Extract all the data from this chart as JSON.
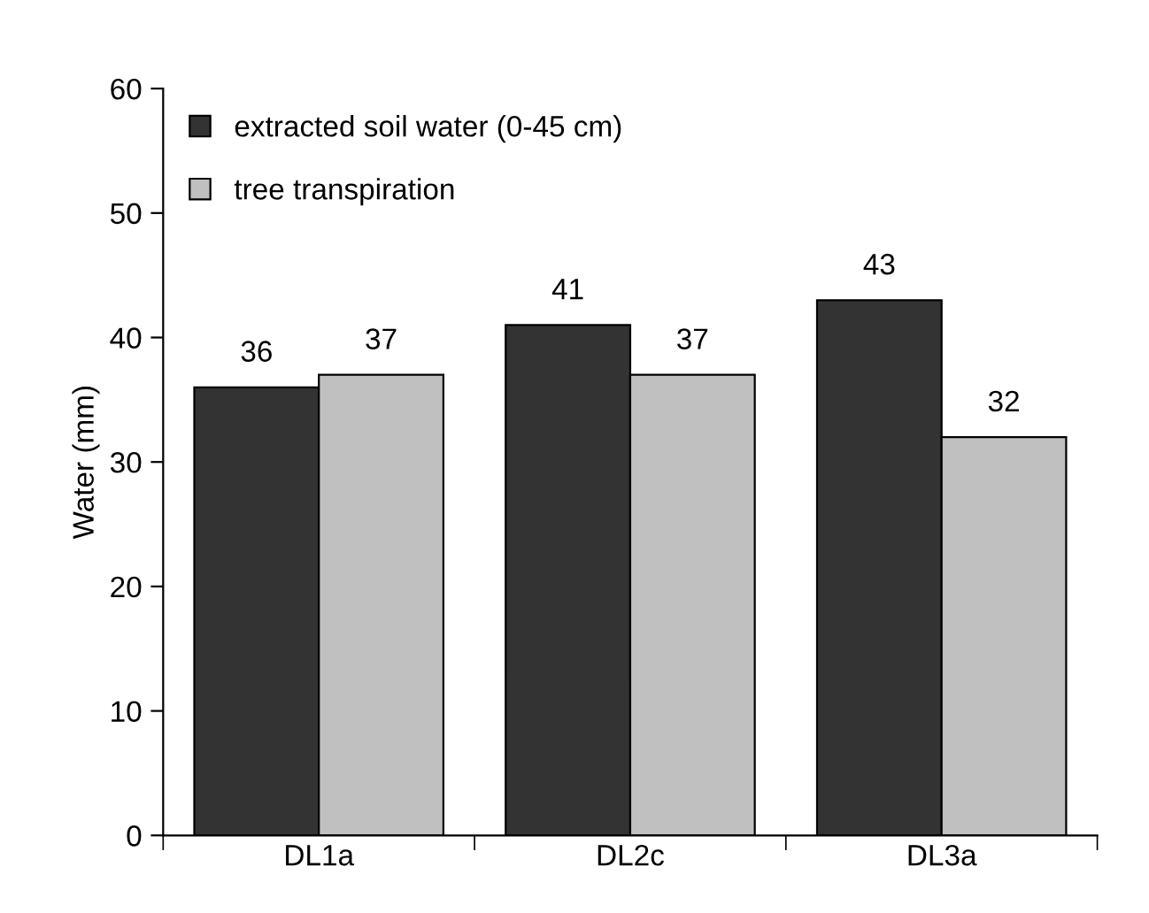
{
  "chart_data": {
    "type": "bar",
    "ylabel": "Water (mm)",
    "categories": [
      "DL1a",
      "DL2c",
      "DL3a"
    ],
    "series": [
      {
        "name": "extracted soil water (0-45 cm)",
        "color": "#333333",
        "values": [
          36,
          41,
          43
        ]
      },
      {
        "name": "tree transpiration",
        "color": "#c0c0c0",
        "values": [
          37,
          37,
          32
        ]
      }
    ],
    "ylim": [
      0,
      60
    ],
    "yticks": [
      0,
      10,
      20,
      30,
      40,
      50,
      60
    ],
    "data_labels": true,
    "legend": "top left",
    "grid": false
  }
}
